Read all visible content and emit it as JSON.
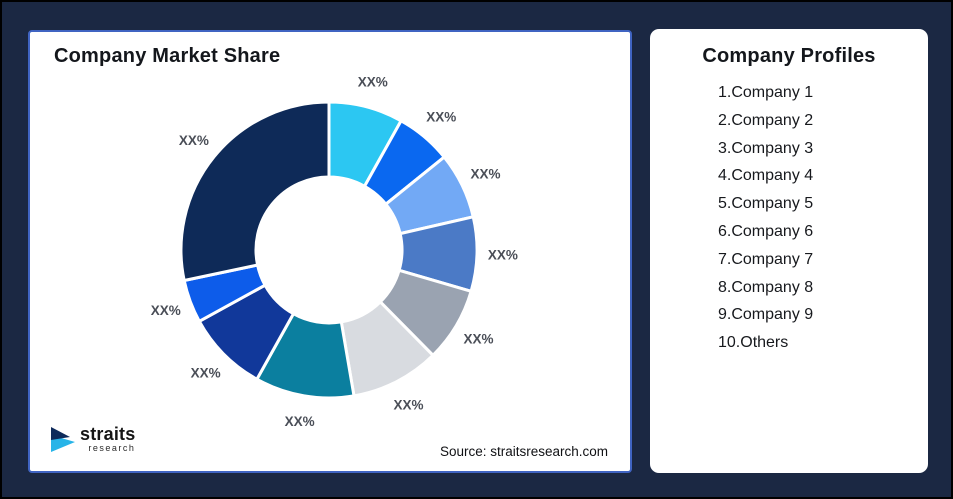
{
  "window": {
    "background_color": "#1b2843",
    "frame_border_color": "#000000"
  },
  "market_share_card": {
    "title": "Company Market Share",
    "source_text": "Source: straitsresearch.com",
    "border_color": "#4064c2",
    "logo": {
      "brand": "straits",
      "sub": "research",
      "icon_navy": "#0e2a5a",
      "icon_cyan": "#27b4e8"
    }
  },
  "chart_data": {
    "type": "donut",
    "title": "Company Market Share",
    "legend_position": "none",
    "start_angle_deg": 0,
    "direction": "clockwise",
    "inner_radius_ratio": 0.49,
    "segment_stroke_color": "#ffffff",
    "label_color": "#4a4e57",
    "segments": [
      {
        "name": "Company 1",
        "label": "XX%",
        "share_pct_est": 8.1,
        "color": "#2cc7f2"
      },
      {
        "name": "Company 2",
        "label": "XX%",
        "share_pct_est": 6.1,
        "color": "#0a68f0"
      },
      {
        "name": "Company 3",
        "label": "XX%",
        "share_pct_est": 7.2,
        "color": "#72a9f5"
      },
      {
        "name": "Company 4",
        "label": "XX%",
        "share_pct_est": 8.1,
        "color": "#4b7ac6"
      },
      {
        "name": "Company 5",
        "label": "XX%",
        "share_pct_est": 8.1,
        "color": "#9aa3b1"
      },
      {
        "name": "Company 6",
        "label": "XX%",
        "share_pct_est": 9.7,
        "color": "#d8dbe0"
      },
      {
        "name": "Company 7",
        "label": "XX%",
        "share_pct_est": 10.8,
        "color": "#0b7f9f"
      },
      {
        "name": "Company 8",
        "label": "XX%",
        "share_pct_est": 8.9,
        "color": "#11389a"
      },
      {
        "name": "Company 9",
        "label": "XX%",
        "share_pct_est": 4.7,
        "color": "#0d5cea"
      },
      {
        "name": "Others",
        "label": "XX%",
        "share_pct_est": 28.3,
        "color": "#0e2a58"
      }
    ]
  },
  "profiles_card": {
    "title": "Company Profiles",
    "items": [
      "1.Company 1",
      "2.Company 2",
      "3.Company 3",
      "4.Company 4",
      "5.Company 5",
      "6.Company 6",
      "7.Company 7",
      "8.Company 8",
      "9.Company 9",
      "10.Others"
    ]
  }
}
